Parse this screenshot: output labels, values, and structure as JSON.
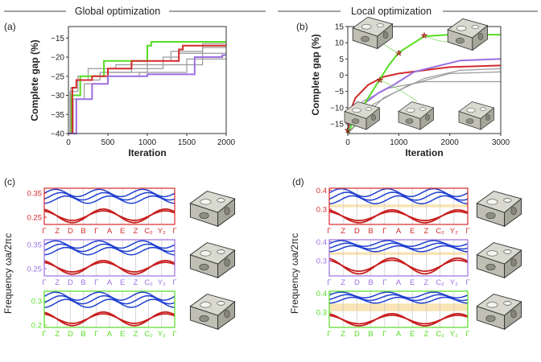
{
  "headers": {
    "global": "Global optimization",
    "local": "Local optimization"
  },
  "colors": {
    "red": "#d42a2a",
    "green": "#55dd22",
    "purple": "#9b6fe0",
    "gray": "#9a9a9a",
    "blue": "#1f3fd0",
    "band_red": "#c81e1e",
    "gap": "#f7dfa8"
  },
  "chart_data": [
    {
      "id": "a",
      "panel_label": "(a)",
      "type": "line",
      "xlabel": "Iteration",
      "ylabel": "Complete gap (%)",
      "xlim": [
        0,
        2000
      ],
      "ylim": [
        -40,
        -12
      ],
      "xticks": [
        0,
        500,
        1000,
        1500,
        2000
      ],
      "yticks": [
        -40,
        -35,
        -30,
        -25,
        -20,
        -15
      ],
      "series": [
        {
          "name": "gray-1",
          "color": "gray",
          "points": [
            [
              0,
              -40
            ],
            [
              30,
              -28
            ],
            [
              100,
              -26
            ],
            [
              250,
              -23
            ],
            [
              600,
              -22
            ],
            [
              1000,
              -21
            ],
            [
              1300,
              -18.5
            ],
            [
              1700,
              -16.5
            ],
            [
              2000,
              -16.5
            ]
          ]
        },
        {
          "name": "gray-2",
          "color": "gray",
          "points": [
            [
              0,
              -40
            ],
            [
              40,
              -30
            ],
            [
              150,
              -26
            ],
            [
              400,
              -24
            ],
            [
              800,
              -23
            ],
            [
              1200,
              -20
            ],
            [
              1400,
              -19
            ],
            [
              2000,
              -19
            ]
          ]
        },
        {
          "name": "gray-3",
          "color": "gray",
          "points": [
            [
              0,
              -40
            ],
            [
              60,
              -31
            ],
            [
              200,
              -27
            ],
            [
              500,
              -25
            ],
            [
              900,
              -24
            ],
            [
              1500,
              -20.5
            ],
            [
              2000,
              -20.5
            ]
          ]
        },
        {
          "name": "gray-4",
          "color": "gray",
          "points": [
            [
              0,
              -40
            ],
            [
              20,
              -29
            ],
            [
              120,
              -25
            ],
            [
              450,
              -24
            ],
            [
              1000,
              -22
            ],
            [
              1700,
              -17.5
            ],
            [
              2000,
              -17.5
            ]
          ]
        },
        {
          "name": "green",
          "color": "green",
          "points": [
            [
              0,
              -40
            ],
            [
              40,
              -30
            ],
            [
              150,
              -25
            ],
            [
              450,
              -21
            ],
            [
              1000,
              -17
            ],
            [
              1050,
              -16
            ],
            [
              2000,
              -16
            ]
          ]
        },
        {
          "name": "red",
          "color": "red",
          "points": [
            [
              0,
              -40
            ],
            [
              50,
              -28
            ],
            [
              100,
              -26
            ],
            [
              300,
              -25
            ],
            [
              500,
              -23
            ],
            [
              800,
              -21
            ],
            [
              1400,
              -18
            ],
            [
              1450,
              -17
            ],
            [
              2000,
              -17
            ]
          ]
        },
        {
          "name": "purple",
          "color": "purple",
          "points": [
            [
              0,
              -40
            ],
            [
              100,
              -31
            ],
            [
              300,
              -27
            ],
            [
              500,
              -25
            ],
            [
              1000,
              -24.5
            ],
            [
              1500,
              -24.5
            ],
            [
              1600,
              -20
            ],
            [
              1950,
              -19.5
            ],
            [
              2000,
              -19.5
            ]
          ]
        }
      ]
    },
    {
      "id": "b",
      "panel_label": "(b)",
      "type": "line",
      "xlabel": "Iteration",
      "ylabel": "Complete gap (%)",
      "xlim": [
        0,
        3000
      ],
      "ylim": [
        -18,
        15
      ],
      "xticks": [
        0,
        1000,
        2000,
        3000
      ],
      "yticks": [
        -15,
        -10,
        -5,
        0,
        5,
        10,
        15
      ],
      "series": [
        {
          "name": "gray-1",
          "color": "gray",
          "points": [
            [
              0,
              -18
            ],
            [
              80,
              -12
            ],
            [
              300,
              -8
            ],
            [
              800,
              -4
            ],
            [
              1500,
              -2
            ],
            [
              3000,
              -2
            ]
          ]
        },
        {
          "name": "gray-2",
          "color": "gray",
          "points": [
            [
              0,
              -18
            ],
            [
              150,
              -15
            ],
            [
              500,
              -9
            ],
            [
              1200,
              -3
            ],
            [
              2000,
              0.5
            ],
            [
              3000,
              1
            ]
          ]
        },
        {
          "name": "gray-3",
          "color": "gray",
          "points": [
            [
              0,
              -18
            ],
            [
              250,
              -14
            ],
            [
              700,
              -7
            ],
            [
              1500,
              -1
            ],
            [
              2200,
              1.5
            ],
            [
              3000,
              2
            ]
          ]
        },
        {
          "name": "red",
          "color": "red",
          "points": [
            [
              0,
              -18
            ],
            [
              50,
              -11
            ],
            [
              150,
              -7
            ],
            [
              400,
              -3
            ],
            [
              700,
              -0.5
            ],
            [
              1000,
              0.5
            ],
            [
              2000,
              2.5
            ],
            [
              3000,
              3
            ]
          ]
        },
        {
          "name": "purple",
          "color": "purple",
          "points": [
            [
              0,
              -18
            ],
            [
              100,
              -13
            ],
            [
              300,
              -9
            ],
            [
              600,
              -5.5
            ],
            [
              900,
              -3
            ],
            [
              1300,
              1
            ],
            [
              2200,
              4.5
            ],
            [
              3000,
              5
            ]
          ]
        },
        {
          "name": "green",
          "color": "green",
          "points": [
            [
              0,
              -18
            ],
            [
              50,
              -16
            ],
            [
              120,
              -14
            ],
            [
              250,
              -11
            ],
            [
              400,
              -7
            ],
            [
              600,
              -2
            ],
            [
              800,
              3
            ],
            [
              1000,
              7
            ],
            [
              1200,
              9
            ],
            [
              1500,
              12
            ],
            [
              2000,
              12.5
            ],
            [
              3000,
              12.5
            ]
          ]
        }
      ],
      "markers": [
        [
          0,
          -17
        ],
        [
          630,
          -1.5
        ],
        [
          1000,
          6.8
        ],
        [
          1500,
          12.2
        ]
      ]
    },
    {
      "id": "c",
      "panel_label": "(c)",
      "type": "line",
      "subtype": "band-structure",
      "ylabel": "Frequency ωa/2πc",
      "kpoints": [
        "Γ",
        "Z",
        "D",
        "B",
        "Γ",
        "A",
        "E",
        "Z",
        "C₂",
        "Y₂",
        "Γ"
      ],
      "rows": [
        {
          "frame": "red",
          "ylim": [
            0.22,
            0.37
          ],
          "yticks": [
            0.25,
            0.35
          ],
          "ytick_labels": [
            "0.25",
            "0.35"
          ],
          "lower": [
            0.22,
            0.295
          ],
          "upper": [
            0.305,
            0.36
          ]
        },
        {
          "frame": "purple",
          "ylim": [
            0.22,
            0.37
          ],
          "yticks": [
            0.25,
            0.35
          ],
          "ytick_labels": [
            "0.25",
            "0.35"
          ],
          "lower": [
            0.22,
            0.295
          ],
          "upper": [
            0.305,
            0.36
          ]
        },
        {
          "frame": "green",
          "ylim": [
            0.19,
            0.34
          ],
          "yticks": [
            0.2,
            0.3
          ],
          "ytick_labels": [
            "0.2",
            "0.3"
          ],
          "lower": [
            0.19,
            0.265
          ],
          "upper": [
            0.27,
            0.33
          ]
        }
      ]
    },
    {
      "id": "d",
      "panel_label": "(d)",
      "type": "line",
      "subtype": "band-structure",
      "ylabel": "Frequency ωa/2πc",
      "kpoints": [
        "Γ",
        "Z",
        "D",
        "B",
        "Γ",
        "A",
        "E",
        "Z",
        "C₂",
        "Y₂",
        "Γ"
      ],
      "rows": [
        {
          "frame": "red",
          "ylim": [
            0.22,
            0.41
          ],
          "yticks": [
            0.3,
            0.4
          ],
          "ytick_labels": [
            "0.3",
            "0.4"
          ],
          "lower": [
            0.22,
            0.31
          ],
          "upper": [
            0.325,
            0.4
          ],
          "gap": [
            0.31,
            0.325
          ]
        },
        {
          "frame": "purple",
          "ylim": [
            0.22,
            0.41
          ],
          "yticks": [
            0.3,
            0.4
          ],
          "ytick_labels": [
            "0.3",
            "0.4"
          ],
          "lower": [
            0.22,
            0.33
          ],
          "upper": [
            0.345,
            0.4
          ],
          "gap": [
            0.33,
            0.345
          ]
        },
        {
          "frame": "green",
          "ylim": [
            0.22,
            0.41
          ],
          "yticks": [
            0.3,
            0.4
          ],
          "ytick_labels": [
            "0.3",
            "0.4"
          ],
          "lower": [
            0.22,
            0.305
          ],
          "upper": [
            0.345,
            0.4
          ],
          "gap": [
            0.305,
            0.345
          ]
        }
      ]
    }
  ]
}
